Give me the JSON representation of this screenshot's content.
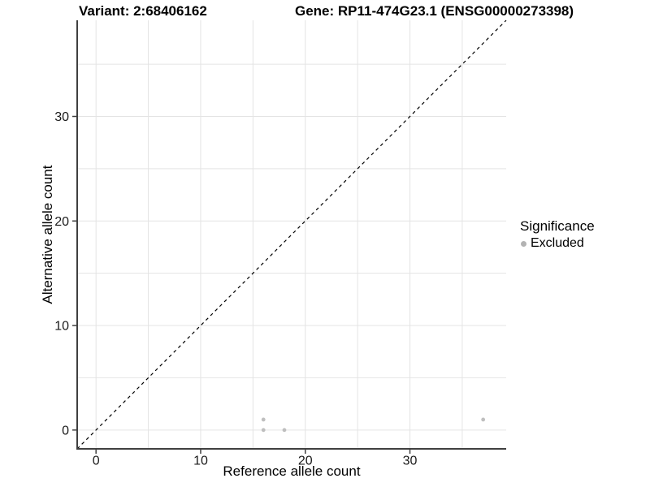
{
  "chart_data": {
    "type": "scatter",
    "title_left": "Variant: 2:68406162",
    "title_right": "Gene: RP11-474G23.1 (ENSG00000273398)",
    "xlabel": "Reference allele count",
    "ylabel": "Alternative allele count",
    "xlim": [
      -1.8,
      39.2
    ],
    "ylim": [
      -1.8,
      39.2
    ],
    "x_ticks": [
      0,
      10,
      20,
      30
    ],
    "y_ticks": [
      0,
      10,
      20,
      30
    ],
    "grid_interval": 5,
    "grid_on": true,
    "grid_color": "#e4e4e4",
    "axis_line_color": "#404040",
    "tick_label_color": "#1a1a1a",
    "reference_line": {
      "type": "identity",
      "style": "dashed",
      "color": "#000000"
    },
    "series": [
      {
        "name": "Excluded",
        "color": "#bfbfbf",
        "points": [
          [
            16,
            0
          ],
          [
            16,
            1
          ],
          [
            18,
            0
          ],
          [
            37,
            1
          ]
        ]
      }
    ],
    "legend": {
      "title": "Significance",
      "position": "right",
      "items": [
        {
          "label": "Excluded",
          "color": "#b3b3b3"
        }
      ]
    }
  }
}
